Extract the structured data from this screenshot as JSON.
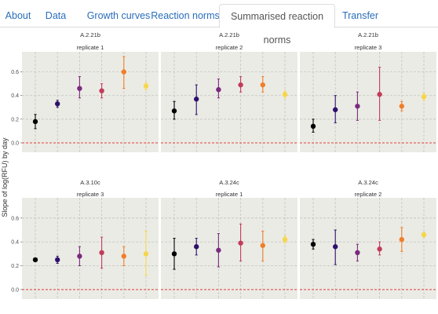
{
  "tabs": [
    {
      "label": "About",
      "active": false
    },
    {
      "label": "Data",
      "active": false
    },
    {
      "label": "Growth curves",
      "active": false
    },
    {
      "label": "Reaction norms",
      "active": false
    },
    {
      "label": "Summarised reaction norms",
      "active": true
    },
    {
      "label": "Transfer",
      "active": false
    }
  ],
  "colors": {
    "panel_bg": "#ebebe5",
    "grid": "#c4c4bf",
    "strip_text": "#333333",
    "zero_line": "#e0403a",
    "tab_link": "#2a6ebb",
    "point_colors": [
      "#000000",
      "#2d0f6b",
      "#7b2a7e",
      "#c23b5b",
      "#f07e2a",
      "#f6d64a"
    ]
  },
  "chart_data": {
    "type": "scatter",
    "xlabel": "",
    "ylabel": "Slope of log(RFU) by day",
    "ylim": [
      -0.08,
      0.77
    ],
    "yticks": [
      0.0,
      0.2,
      0.4,
      0.6
    ],
    "ytick_labels": [
      "0.0",
      "0.2",
      "0.4",
      "0.6"
    ],
    "hline": 0.0,
    "grid": true,
    "panels": [
      {
        "strain": "A.2.21b",
        "replicate": "replicate 1",
        "points": [
          {
            "y": 0.18,
            "lo": 0.12,
            "hi": 0.24
          },
          {
            "y": 0.33,
            "lo": 0.3,
            "hi": 0.36
          },
          {
            "y": 0.46,
            "lo": 0.38,
            "hi": 0.56
          },
          {
            "y": 0.44,
            "lo": 0.38,
            "hi": 0.5
          },
          {
            "y": 0.6,
            "lo": 0.46,
            "hi": 0.73
          },
          {
            "y": 0.48,
            "lo": 0.45,
            "hi": 0.51
          }
        ]
      },
      {
        "strain": "A.2.21b",
        "replicate": "replicate 2",
        "points": [
          {
            "y": 0.27,
            "lo": 0.2,
            "hi": 0.35
          },
          {
            "y": 0.37,
            "lo": 0.24,
            "hi": 0.49
          },
          {
            "y": 0.45,
            "lo": 0.38,
            "hi": 0.54
          },
          {
            "y": 0.49,
            "lo": 0.43,
            "hi": 0.56
          },
          {
            "y": 0.49,
            "lo": 0.43,
            "hi": 0.56
          },
          {
            "y": 0.41,
            "lo": 0.38,
            "hi": 0.44
          }
        ]
      },
      {
        "strain": "A.2.21b",
        "replicate": "replicate 3",
        "points": [
          {
            "y": 0.14,
            "lo": 0.09,
            "hi": 0.2
          },
          {
            "y": 0.28,
            "lo": 0.17,
            "hi": 0.4
          },
          {
            "y": 0.31,
            "lo": 0.19,
            "hi": 0.43
          },
          {
            "y": 0.41,
            "lo": 0.19,
            "hi": 0.64
          },
          {
            "y": 0.31,
            "lo": 0.27,
            "hi": 0.35
          },
          {
            "y": 0.39,
            "lo": 0.36,
            "hi": 0.42
          }
        ]
      },
      {
        "strain": "A.3.10c",
        "replicate": "replicate 3",
        "points": [
          {
            "y": 0.25,
            "lo": 0.24,
            "hi": 0.26
          },
          {
            "y": 0.25,
            "lo": 0.22,
            "hi": 0.28
          },
          {
            "y": 0.28,
            "lo": 0.2,
            "hi": 0.36
          },
          {
            "y": 0.31,
            "lo": 0.18,
            "hi": 0.44
          },
          {
            "y": 0.28,
            "lo": 0.2,
            "hi": 0.36
          },
          {
            "y": 0.3,
            "lo": 0.12,
            "hi": 0.49
          }
        ]
      },
      {
        "strain": "A.3.24c",
        "replicate": "replicate 1",
        "points": [
          {
            "y": 0.3,
            "lo": 0.17,
            "hi": 0.43
          },
          {
            "y": 0.36,
            "lo": 0.29,
            "hi": 0.43
          },
          {
            "y": 0.33,
            "lo": 0.19,
            "hi": 0.47
          },
          {
            "y": 0.39,
            "lo": 0.24,
            "hi": 0.55
          },
          {
            "y": 0.37,
            "lo": 0.24,
            "hi": 0.49
          },
          {
            "y": 0.42,
            "lo": 0.39,
            "hi": 0.45
          }
        ]
      },
      {
        "strain": "A.3.24c",
        "replicate": "replicate 2",
        "points": [
          {
            "y": 0.38,
            "lo": 0.34,
            "hi": 0.42
          },
          {
            "y": 0.36,
            "lo": 0.21,
            "hi": 0.5
          },
          {
            "y": 0.31,
            "lo": 0.24,
            "hi": 0.38
          },
          {
            "y": 0.34,
            "lo": 0.29,
            "hi": 0.4
          },
          {
            "y": 0.42,
            "lo": 0.32,
            "hi": 0.52
          },
          {
            "y": 0.46,
            "lo": 0.44,
            "hi": 0.48
          }
        ]
      }
    ]
  }
}
